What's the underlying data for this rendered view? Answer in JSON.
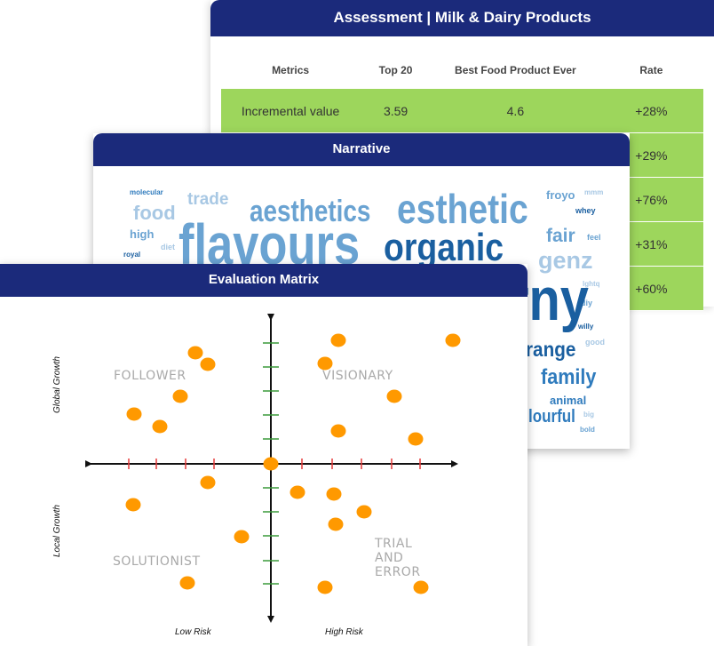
{
  "assessment": {
    "title": "Assessment | Milk & Dairy Products",
    "columns": [
      "Metrics",
      "Top 20",
      "Best Food Product Ever",
      "Rate"
    ],
    "rows": [
      [
        "Incremental value",
        "3.59",
        "4.6",
        "+28%"
      ],
      [
        "",
        "",
        "",
        "+29%"
      ],
      [
        "",
        "",
        "",
        "+76%"
      ],
      [
        "",
        "",
        "",
        "+31%"
      ],
      [
        "",
        "",
        "",
        "+60%"
      ]
    ],
    "row_color": "#9dd65c",
    "header_color": "#1b2a7b"
  },
  "narrative": {
    "title": "Narrative",
    "words": [
      "molecular",
      "trade",
      "food",
      "high",
      "diet",
      "royal",
      "aesthetics",
      "esthetic",
      "froyo",
      "mmm",
      "whey",
      "flavours",
      "organic",
      "fair",
      "feel",
      "genz",
      "lghtq",
      "diy",
      "willy",
      "good",
      "rny",
      "range",
      "family",
      "animal",
      "lourful",
      "big",
      "bold"
    ],
    "colors": [
      "#a8c8e4",
      "#6aa3d2",
      "#2f7bbd",
      "#1a5fa0"
    ]
  },
  "matrix": {
    "title": "Evaluation Matrix",
    "quadrants": {
      "top_left": "FOLLOWER",
      "top_right": "VISIONARY",
      "bottom_left": "SOLUTIONIST",
      "bottom_right": [
        "TRIAL",
        "AND",
        "ERROR"
      ]
    },
    "y_top_label": "Global Growth",
    "y_bottom_label": "Local Growth",
    "x_left_label": "Low Risk",
    "x_right_label": "High Risk",
    "dot_color": "#ff9900",
    "point_count": 26
  }
}
